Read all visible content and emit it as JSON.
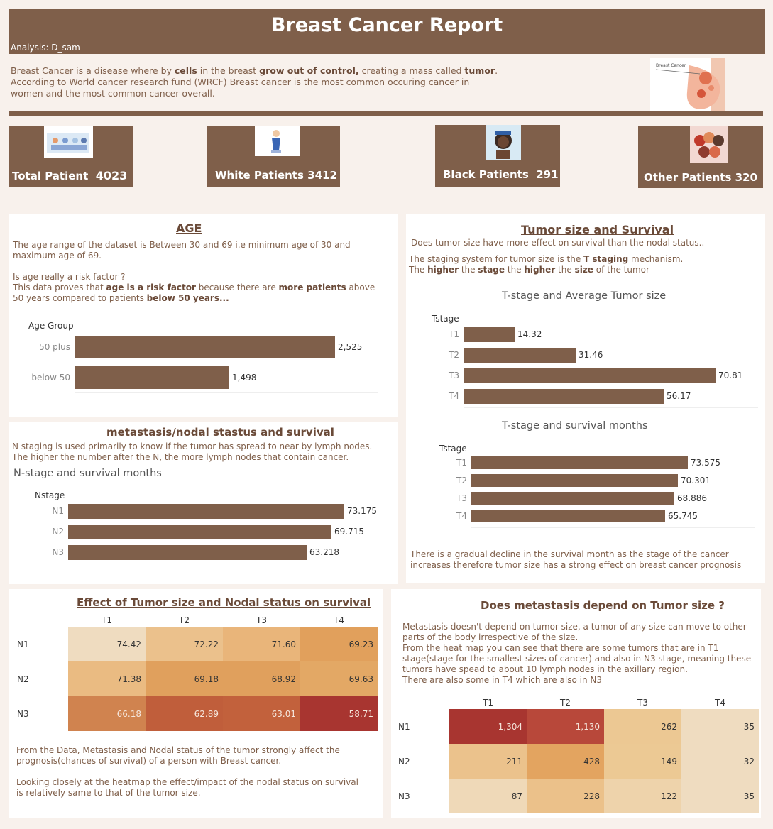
{
  "header": {
    "title": "Breast Cancer Report",
    "analysis": "Analysis: D_sam"
  },
  "intro": {
    "p1a": "Breast Cancer is a disease where by ",
    "p1b": "cells",
    "p1c": " in the breast ",
    "p1d": "grow out of control,",
    "p1e": " creating a mass called ",
    "p1f": "tumor",
    ".": ".",
    "p2": "According to World cancer research fund (WRCF) Breast cancer is the most common occuring cancer in",
    "p3": "women and the most common cancer overall."
  },
  "hero": {
    "caption": "Breast Cancer"
  },
  "kpis": [
    {
      "label": "Total Patient",
      "value": "4023"
    },
    {
      "label": "White Patients",
      "value": "3412"
    },
    {
      "label": "Black Patients",
      "value": "291"
    },
    {
      "label": "Other Patients",
      "value": "320"
    }
  ],
  "age": {
    "title": "AGE",
    "t1": "The age range of the dataset is Between 30 and 69 i.e minimum age of 30 and",
    "t2": "maximum age of 69.",
    "t3": "Is age really a risk factor ?",
    "t4a": "This data proves that ",
    "t4b": "age is a risk factor",
    "t4c": " because there are ",
    "t4d": "more patients",
    "t4e": " above",
    "t5a": "50 years compared to patients ",
    "t5b": "below 50 years...",
    "axis": "Age Group",
    "bars": [
      {
        "label": "50 plus",
        "value": 2525,
        "text": "2,525"
      },
      {
        "label": "below 50",
        "value": 1498,
        "text": "1,498"
      }
    ]
  },
  "meta": {
    "title": "metastasis/nodal stastus and survival",
    "t1": "N staging is used primarily to know if the tumor has spread to near by lymph nodes.",
    "t2": "The higher the number after the N, the more lymph nodes that contain cancer.",
    "ctitle": "N-stage and survival months",
    "axis": "Nstage",
    "bars": [
      {
        "label": "N1",
        "value": 73.175,
        "text": "73.175"
      },
      {
        "label": "N2",
        "value": 69.715,
        "text": "69.715"
      },
      {
        "label": "N3",
        "value": 63.218,
        "text": "63.218"
      }
    ]
  },
  "tumor": {
    "title": "Tumor size and Survival",
    "t1": "Does tumor size have more effect on survival than the nodal status..",
    "t2a": "The staging system for tumor size is the ",
    "t2b": "T staging",
    "t2c": " mechanism.",
    "t3a": "The ",
    "t3b": "higher",
    "t3c": " the ",
    "t3d": "stage",
    "t3e": " the ",
    "t3f": "higher",
    "t3g": " the ",
    "t3h": "size",
    "t3i": " of the tumor",
    "c1title": "T-stage and Average Tumor size",
    "c1axis": "Tstage",
    "c1": [
      {
        "label": "T1",
        "value": 14.32,
        "text": "14.32"
      },
      {
        "label": "T2",
        "value": 31.46,
        "text": "31.46"
      },
      {
        "label": "T3",
        "value": 70.81,
        "text": "70.81"
      },
      {
        "label": "T4",
        "value": 56.17,
        "text": "56.17"
      }
    ],
    "c2title": "T-stage and survival months",
    "c2axis": "Tstage",
    "c2": [
      {
        "label": "T1",
        "value": 73.575,
        "text": "73.575"
      },
      {
        "label": "T2",
        "value": 70.301,
        "text": "70.301"
      },
      {
        "label": "T3",
        "value": 68.886,
        "text": "68.886"
      },
      {
        "label": "T4",
        "value": 65.745,
        "text": "65.745"
      }
    ],
    "f1": "There is a gradual decline in the survival month as the stage of the cancer",
    "f2": "increases therefore tumor size has a strong effect on breast cancer prognosis"
  },
  "effect": {
    "title": "Effect of Tumor size and Nodal status on survival",
    "cols": [
      "T1",
      "T2",
      "T3",
      "T4"
    ],
    "rows": [
      {
        "label": "N1",
        "vals": [
          "74.42",
          "72.22",
          "71.60",
          "69.23"
        ],
        "colors": [
          "#efdcc0",
          "#ebc18c",
          "#e9b57a",
          "#e1a05c"
        ]
      },
      {
        "label": "N2",
        "vals": [
          "71.38",
          "69.18",
          "68.92",
          "69.63"
        ],
        "colors": [
          "#eabb82",
          "#e0a05d",
          "#e0a05d",
          "#e3a865"
        ]
      },
      {
        "label": "N3",
        "vals": [
          "66.18",
          "62.89",
          "63.01",
          "58.71"
        ],
        "colors": [
          "#d0834f",
          "#c05e3b",
          "#c2613c",
          "#a83530"
        ]
      }
    ],
    "t1": "From the Data, Metastasis and Nodal status of the tumor strongly affect the",
    "t2": "prognosis(chances of survival) of a person with Breast cancer.",
    "t3": "Looking closely at the heatmap the effect/impact of the nodal status on survival",
    "t4": "is relatively same to that of the tumor size."
  },
  "depend": {
    "title": "Does metastasis depend on Tumor size ?",
    "t1": "Metastasis doesn't depend on tumor size, a tumor of any size can move to other",
    "t2": "parts of the body irrespective of the size.",
    "t3": "From the heat map you can see that there are some tumors that are in T1",
    "t4": "stage(stage for the smallest sizes of cancer) and also in N3 stage, meaning these",
    "t5": "tumors have spead to about 10 lymph nodes in the axillary region.",
    "t6": "There are also some in T4 which are also in N3",
    "cols": [
      "T1",
      "T2",
      "T3",
      "T4"
    ],
    "rows": [
      {
        "label": "N1",
        "vals": [
          "1,304",
          "1,130",
          "262",
          "35"
        ],
        "colors": [
          "#a83530",
          "#b8483a",
          "#ecc893",
          "#efdcc0"
        ]
      },
      {
        "label": "N2",
        "vals": [
          "211",
          "428",
          "149",
          "32"
        ],
        "colors": [
          "#ebc28c",
          "#e3a460",
          "#ecc994",
          "#efdcc0"
        ]
      },
      {
        "label": "N3",
        "vals": [
          "87",
          "228",
          "122",
          "35"
        ],
        "colors": [
          "#efd9b8",
          "#ebc18a",
          "#eed3ab",
          "#efdcc0"
        ]
      }
    ]
  }
}
